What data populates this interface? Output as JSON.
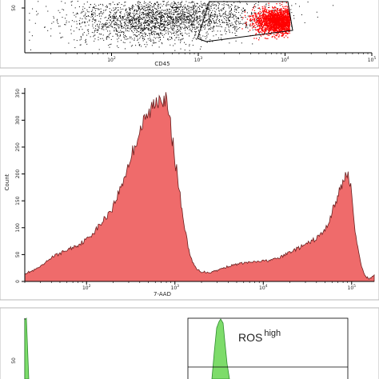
{
  "chart_data": [
    {
      "type": "scatter",
      "xlabel": "CD45",
      "ylabel": "",
      "x_scale": "log",
      "xlim": [
        10,
        100000
      ],
      "x_ticks": [
        {
          "value": 100,
          "base": "10",
          "exp": "2"
        },
        {
          "value": 1000,
          "base": "10",
          "exp": "3"
        },
        {
          "value": 10000,
          "base": "10",
          "exp": "4"
        },
        {
          "value": 100000,
          "base": "10",
          "exp": "5"
        }
      ],
      "y_tick_partial": "50",
      "populations": [
        {
          "color": "#000000",
          "center_x": 400,
          "spread": "broad",
          "points": 2600
        },
        {
          "color": "#ff0000",
          "center_x": 8500,
          "spread": "tight",
          "points": 2200
        }
      ],
      "gate": "polygon around the red population"
    },
    {
      "type": "area",
      "xlabel": "7-AAD",
      "ylabel": "Count",
      "x_scale": "log",
      "xlim": [
        20,
        180000
      ],
      "ylim": [
        0,
        360
      ],
      "y_ticks": [
        "0",
        "50",
        "100",
        "150",
        "200",
        "250",
        "300",
        "350"
      ],
      "x_ticks": [
        {
          "value": 100,
          "base": "10",
          "exp": "2"
        },
        {
          "value": 1000,
          "base": "10",
          "exp": "3"
        },
        {
          "value": 10000,
          "base": "10",
          "exp": "4"
        },
        {
          "value": 100000,
          "base": "10",
          "exp": "5"
        }
      ],
      "fill_color": "#ef6b6b",
      "series": [
        {
          "x": [
            20,
            25,
            32,
            40,
            50,
            63,
            80,
            100,
            126,
            158,
            200,
            251,
            316,
            398,
            500,
            560,
            630,
            700,
            790,
            890,
            1000,
            1120,
            1260,
            1410,
            1580,
            1780,
            2000,
            2510,
            3160,
            3980,
            5010,
            6310,
            7940,
            10000,
            12600,
            15800,
            20000,
            25100,
            31600,
            39800,
            50100,
            56000,
            63100,
            70800,
            79400,
            89100,
            100000,
            112000,
            126000,
            141000,
            158000,
            180000
          ],
          "y": [
            15,
            20,
            30,
            45,
            52,
            60,
            68,
            78,
            95,
            115,
            140,
            180,
            230,
            280,
            310,
            325,
            340,
            350,
            335,
            290,
            230,
            170,
            110,
            65,
            35,
            22,
            18,
            17,
            22,
            28,
            32,
            35,
            36,
            38,
            40,
            45,
            55,
            62,
            70,
            80,
            95,
            115,
            140,
            160,
            185,
            205,
            165,
            80,
            35,
            10,
            5,
            12
          ]
        }
      ]
    },
    {
      "type": "area",
      "label": "ROS",
      "label_superscript": "high",
      "y_tick_partial": "50",
      "fill_color": "#7ddc6a",
      "stroke_color": "#2e8b2e",
      "note": "partially visible panel"
    }
  ]
}
